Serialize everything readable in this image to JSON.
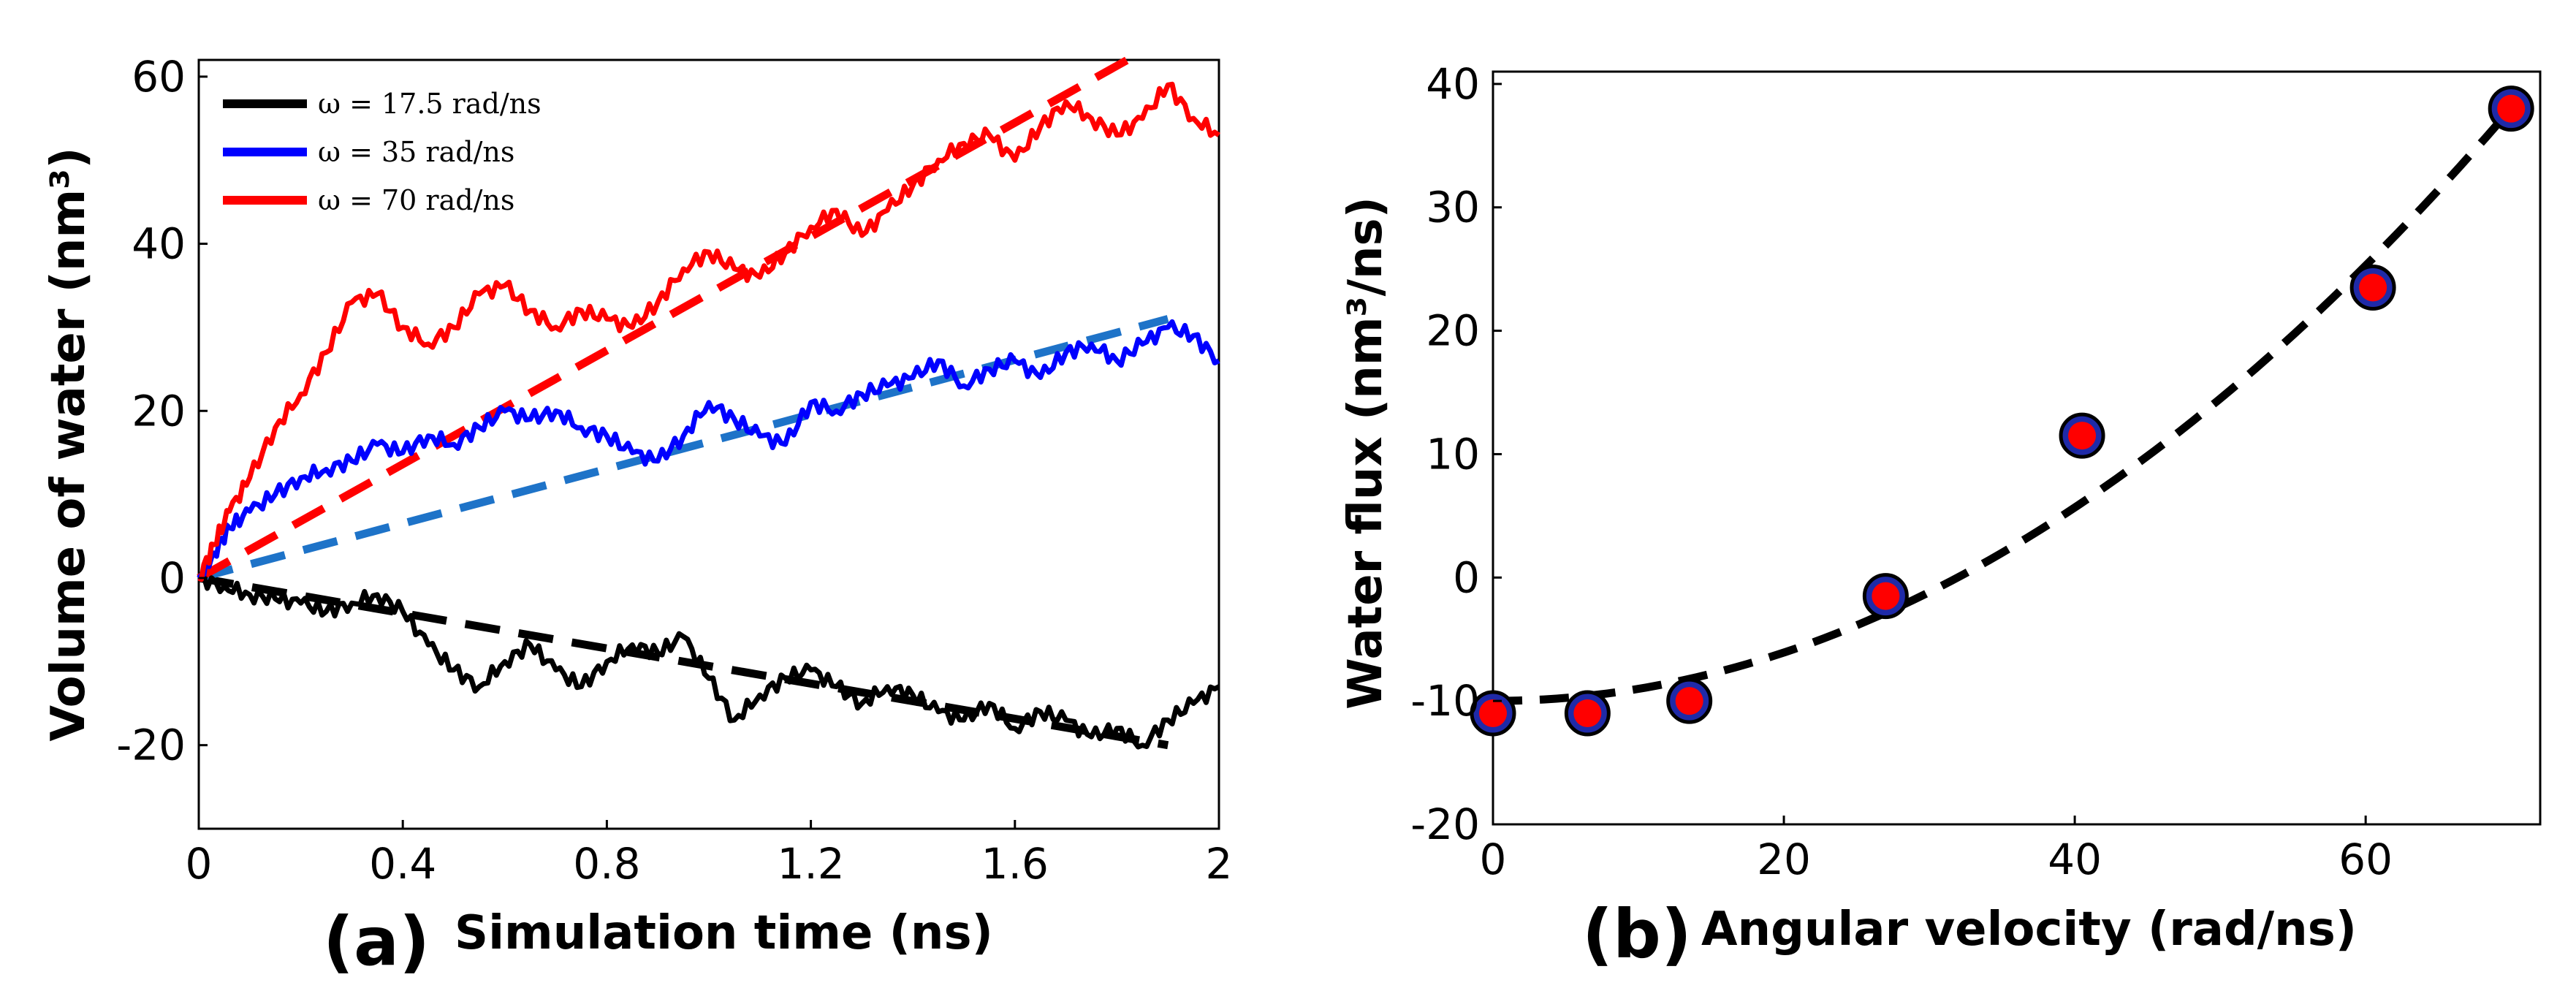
{
  "chart_data": [
    {
      "panel": "(a)",
      "type": "line",
      "title": "",
      "xlabel": "Simulation time (ns)",
      "ylabel": "Volume of water (nm³)",
      "xlim": [
        0,
        2
      ],
      "ylim": [
        -30,
        62
      ],
      "xticks": [
        0,
        0.4,
        0.8,
        1.2,
        1.6,
        2
      ],
      "xtick_labels": [
        "0",
        "0.4",
        "0.8",
        "1.2",
        "1.6",
        "2"
      ],
      "yticks": [
        -20,
        0,
        20,
        40,
        60
      ],
      "ytick_labels": [
        "-20",
        "0",
        "20",
        "40",
        "60"
      ],
      "legend_position": "top-left",
      "series": [
        {
          "name": "ω = 17.5 rad/ns",
          "color": "#000000",
          "points": [
            [
              0,
              0
            ],
            [
              0.05,
              -1
            ],
            [
              0.1,
              -2
            ],
            [
              0.15,
              -2.5
            ],
            [
              0.2,
              -3
            ],
            [
              0.25,
              -4
            ],
            [
              0.3,
              -3
            ],
            [
              0.35,
              -2
            ],
            [
              0.4,
              -4
            ],
            [
              0.45,
              -8
            ],
            [
              0.5,
              -11
            ],
            [
              0.55,
              -13
            ],
            [
              0.6,
              -10
            ],
            [
              0.65,
              -8
            ],
            [
              0.7,
              -11
            ],
            [
              0.75,
              -13
            ],
            [
              0.8,
              -10
            ],
            [
              0.85,
              -8
            ],
            [
              0.9,
              -9
            ],
            [
              0.95,
              -7
            ],
            [
              1.0,
              -12
            ],
            [
              1.05,
              -17
            ],
            [
              1.1,
              -14
            ],
            [
              1.15,
              -12
            ],
            [
              1.2,
              -11
            ],
            [
              1.25,
              -13
            ],
            [
              1.3,
              -15
            ],
            [
              1.35,
              -13
            ],
            [
              1.4,
              -14
            ],
            [
              1.45,
              -16
            ],
            [
              1.5,
              -17
            ],
            [
              1.55,
              -15
            ],
            [
              1.6,
              -18
            ],
            [
              1.65,
              -16
            ],
            [
              1.7,
              -17
            ],
            [
              1.75,
              -19
            ],
            [
              1.8,
              -18
            ],
            [
              1.85,
              -20
            ],
            [
              1.9,
              -17
            ],
            [
              1.95,
              -15
            ],
            [
              2.0,
              -13
            ]
          ]
        },
        {
          "name": "ω = 35 rad/ns",
          "color": "#0000ff",
          "points": [
            [
              0,
              0
            ],
            [
              0.03,
              3
            ],
            [
              0.06,
              6
            ],
            [
              0.1,
              8
            ],
            [
              0.15,
              10
            ],
            [
              0.2,
              12
            ],
            [
              0.25,
              13
            ],
            [
              0.3,
              14
            ],
            [
              0.35,
              16
            ],
            [
              0.4,
              15
            ],
            [
              0.45,
              17
            ],
            [
              0.5,
              16
            ],
            [
              0.55,
              18
            ],
            [
              0.6,
              20
            ],
            [
              0.65,
              19
            ],
            [
              0.7,
              20
            ],
            [
              0.75,
              18
            ],
            [
              0.8,
              17
            ],
            [
              0.85,
              15
            ],
            [
              0.9,
              14
            ],
            [
              0.95,
              17
            ],
            [
              1.0,
              21
            ],
            [
              1.05,
              19
            ],
            [
              1.1,
              17
            ],
            [
              1.15,
              16
            ],
            [
              1.2,
              21
            ],
            [
              1.25,
              20
            ],
            [
              1.3,
              22
            ],
            [
              1.35,
              23
            ],
            [
              1.4,
              24
            ],
            [
              1.45,
              26
            ],
            [
              1.5,
              23
            ],
            [
              1.55,
              25
            ],
            [
              1.6,
              26
            ],
            [
              1.65,
              24
            ],
            [
              1.7,
              27
            ],
            [
              1.75,
              28
            ],
            [
              1.8,
              26
            ],
            [
              1.85,
              28
            ],
            [
              1.9,
              30
            ],
            [
              1.95,
              29
            ],
            [
              2.0,
              26
            ]
          ]
        },
        {
          "name": "ω = 70 rad/ns",
          "color": "#ff0000",
          "points": [
            [
              0,
              0
            ],
            [
              0.03,
              4
            ],
            [
              0.06,
              8
            ],
            [
              0.1,
              12
            ],
            [
              0.15,
              18
            ],
            [
              0.2,
              22
            ],
            [
              0.25,
              27
            ],
            [
              0.3,
              33
            ],
            [
              0.35,
              34
            ],
            [
              0.4,
              30
            ],
            [
              0.45,
              28
            ],
            [
              0.5,
              30
            ],
            [
              0.55,
              34
            ],
            [
              0.6,
              35
            ],
            [
              0.65,
              32
            ],
            [
              0.7,
              30
            ],
            [
              0.75,
              32
            ],
            [
              0.8,
              31
            ],
            [
              0.85,
              30
            ],
            [
              0.9,
              33
            ],
            [
              0.95,
              37
            ],
            [
              1.0,
              39
            ],
            [
              1.05,
              37
            ],
            [
              1.1,
              36
            ],
            [
              1.15,
              39
            ],
            [
              1.2,
              42
            ],
            [
              1.25,
              44
            ],
            [
              1.3,
              41
            ],
            [
              1.35,
              44
            ],
            [
              1.4,
              47
            ],
            [
              1.45,
              50
            ],
            [
              1.5,
              52
            ],
            [
              1.55,
              53
            ],
            [
              1.6,
              50
            ],
            [
              1.65,
              54
            ],
            [
              1.7,
              57
            ],
            [
              1.75,
              55
            ],
            [
              1.8,
              53
            ],
            [
              1.85,
              55
            ],
            [
              1.9,
              59
            ],
            [
              1.95,
              55
            ],
            [
              2.0,
              53
            ]
          ]
        }
      ],
      "fits": [
        {
          "color": "#000000",
          "from": [
            0,
            0
          ],
          "to": [
            1.9,
            -20
          ]
        },
        {
          "color": "#1e73c8",
          "from": [
            0,
            0
          ],
          "to": [
            1.9,
            31
          ]
        },
        {
          "color": "#ff0000",
          "from": [
            0,
            0
          ],
          "to": [
            1.85,
            63
          ]
        }
      ]
    },
    {
      "panel": "(b)",
      "type": "scatter",
      "title": "",
      "xlabel": "Angular velocity (rad/ns)",
      "ylabel": "Water flux (nm³/ns)",
      "xlim": [
        0,
        72
      ],
      "ylim": [
        -20,
        41
      ],
      "xticks": [
        0,
        20,
        40,
        60
      ],
      "xtick_labels": [
        "0",
        "20",
        "40",
        "60"
      ],
      "yticks": [
        -20,
        -10,
        0,
        10,
        20,
        30,
        40
      ],
      "ytick_labels": [
        "-20",
        "-10",
        "0",
        "10",
        "20",
        "30",
        "40"
      ],
      "points": {
        "x": [
          0,
          6.5,
          13.5,
          27,
          40.5,
          60.5,
          70
        ],
        "y": [
          -11,
          -11,
          -10,
          -1.5,
          11.5,
          23.5,
          38
        ]
      },
      "fit": {
        "type": "quadratic",
        "coeffs": [
          -10.0,
          0,
          0.0098
        ],
        "x_range": [
          0,
          70
        ]
      }
    }
  ]
}
